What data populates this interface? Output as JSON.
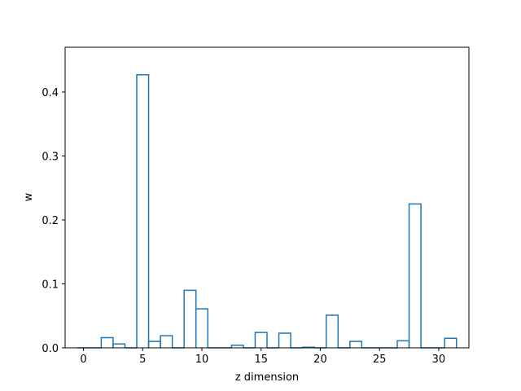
{
  "chart_data": {
    "type": "bar",
    "style": "step-histogram-outline",
    "xlabel": "z dimension",
    "ylabel": "w",
    "xlim": [
      -1.55,
      32.55
    ],
    "ylim": [
      0,
      0.47
    ],
    "xticks": [
      0,
      5,
      10,
      15,
      20,
      25,
      30
    ],
    "yticks": [
      0.0,
      0.1,
      0.2,
      0.3,
      0.4
    ],
    "ytick_labels": [
      "0.0",
      "0.1",
      "0.2",
      "0.3",
      "0.4"
    ],
    "grid": false,
    "color": "#1f77b4",
    "x": [
      0,
      1,
      2,
      3,
      4,
      5,
      6,
      7,
      8,
      9,
      10,
      11,
      12,
      13,
      14,
      15,
      16,
      17,
      18,
      19,
      20,
      21,
      22,
      23,
      24,
      25,
      26,
      27,
      28,
      29,
      30,
      31
    ],
    "values": [
      0.0,
      0.0,
      0.016,
      0.006,
      0.0,
      0.427,
      0.01,
      0.019,
      0.0,
      0.09,
      0.061,
      0.0,
      0.0,
      0.004,
      0.0,
      0.024,
      0.0,
      0.023,
      0.0,
      0.001,
      0.0,
      0.051,
      0.0,
      0.01,
      0.0,
      0.0,
      0.0,
      0.011,
      0.225,
      0.0,
      0.0,
      0.015
    ]
  }
}
